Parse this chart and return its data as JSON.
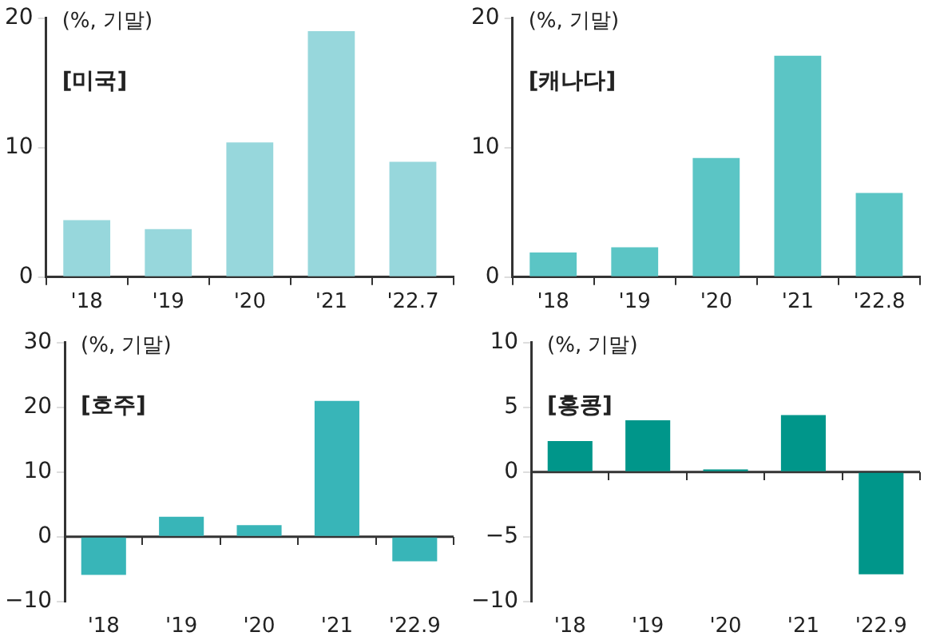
{
  "chart_data": [
    {
      "type": "bar",
      "title": "[미국]",
      "ylabel": "(%, 기말)",
      "categories": [
        "'18",
        "'19",
        "'20",
        "'21",
        "'22.7"
      ],
      "values": [
        4.4,
        3.7,
        10.4,
        19.0,
        8.9
      ],
      "color": "#97d7dc",
      "ylim": [
        0,
        20
      ],
      "yticks": [
        0,
        10,
        20
      ],
      "grid": false,
      "legend": false
    },
    {
      "type": "bar",
      "title": "[캐나다]",
      "ylabel": "(%, 기말)",
      "categories": [
        "'18",
        "'19",
        "'20",
        "'21",
        "'22.8"
      ],
      "values": [
        1.9,
        2.3,
        9.2,
        17.1,
        6.5
      ],
      "color": "#5bc5c5",
      "ylim": [
        0,
        20
      ],
      "yticks": [
        0,
        10,
        20
      ],
      "grid": false,
      "legend": false
    },
    {
      "type": "bar",
      "title": "[호주]",
      "ylabel": "(%, 기말)",
      "categories": [
        "'18",
        "'19",
        "'20",
        "'21",
        "'22.9"
      ],
      "values": [
        -5.9,
        3.1,
        1.8,
        21.0,
        -3.8
      ],
      "color": "#38b5b8",
      "ref_lines": [
        {
          "axis": "y",
          "value": 0,
          "color": "#333333"
        }
      ],
      "ylim": [
        -10,
        30
      ],
      "yticks": [
        -10,
        0,
        10,
        20,
        30
      ],
      "grid": false,
      "legend": false
    },
    {
      "type": "bar",
      "title": "[홍콩]",
      "ylabel": "(%, 기말)",
      "categories": [
        "'18",
        "'19",
        "'20",
        "'21",
        "'22.9"
      ],
      "values": [
        2.4,
        4.0,
        0.2,
        4.4,
        -7.9
      ],
      "color": "#00968a",
      "ref_lines": [
        {
          "axis": "y",
          "value": 0,
          "color": "#333333"
        }
      ],
      "ylim": [
        -10,
        10
      ],
      "yticks": [
        -10,
        -5,
        0,
        5,
        10
      ],
      "grid": false,
      "legend": false
    }
  ]
}
